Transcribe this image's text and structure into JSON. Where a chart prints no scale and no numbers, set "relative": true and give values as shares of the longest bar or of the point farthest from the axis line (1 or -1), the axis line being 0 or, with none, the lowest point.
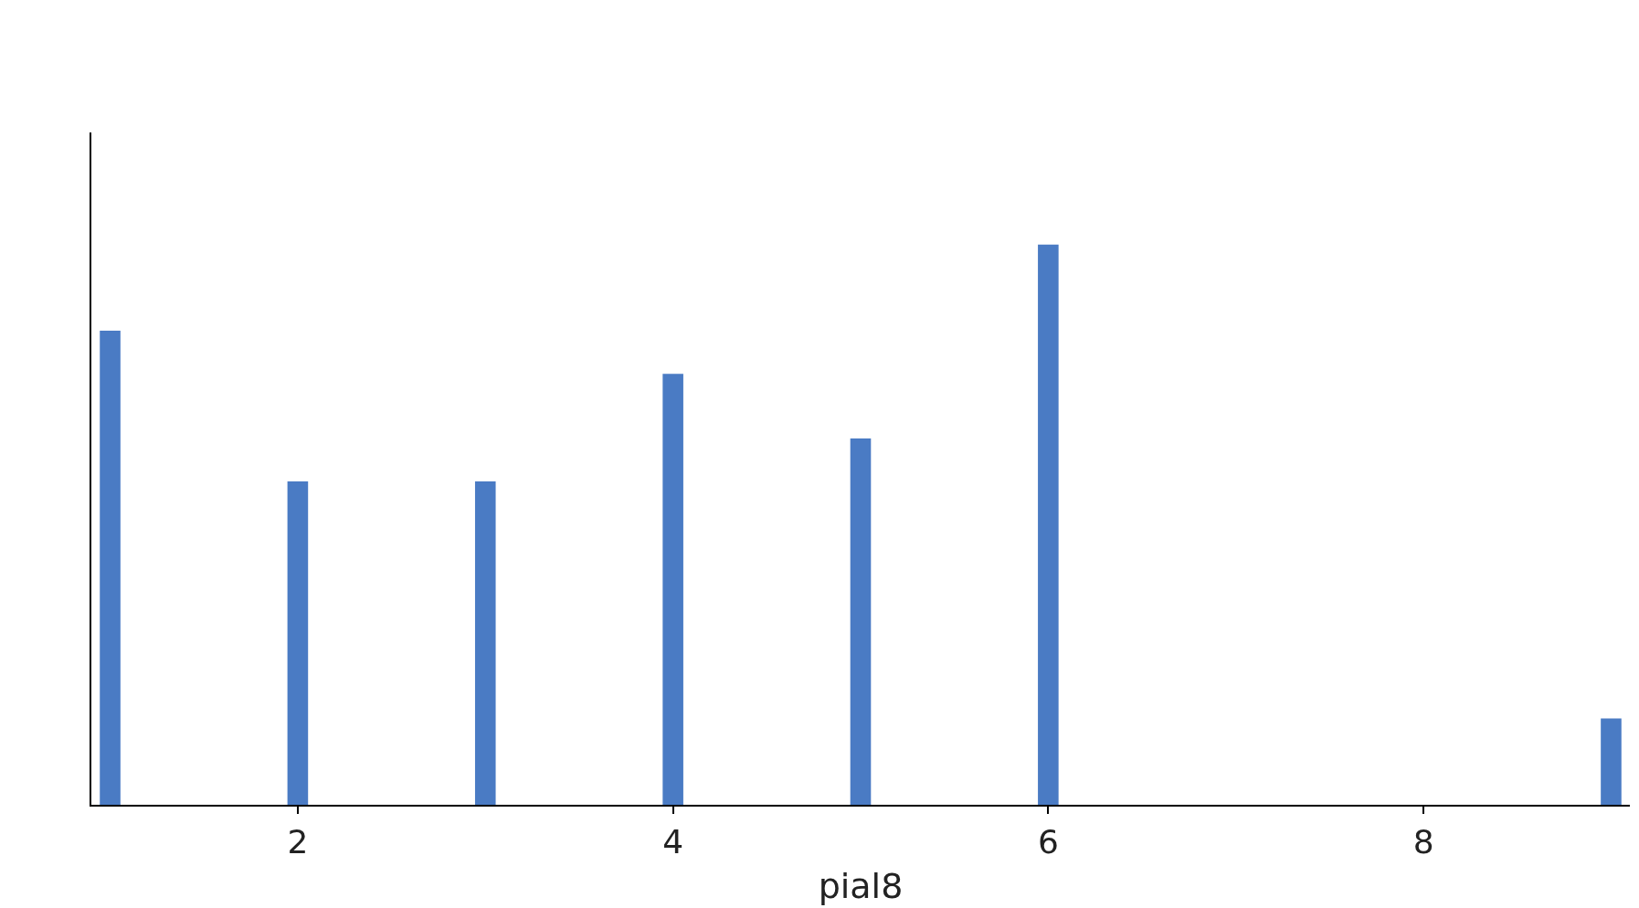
{
  "chart_data": {
    "type": "bar",
    "relative": true,
    "xlabel": "pial8",
    "x": [
      1,
      2,
      3,
      4,
      5,
      6,
      9
    ],
    "values": [
      0.846,
      0.577,
      0.577,
      0.769,
      0.654,
      1,
      0.154
    ],
    "color": "#4a7bc4",
    "xlim": [
      0.9,
      9.1
    ],
    "xticks": [
      2,
      4,
      6,
      8
    ],
    "tick_labels": "x"
  }
}
